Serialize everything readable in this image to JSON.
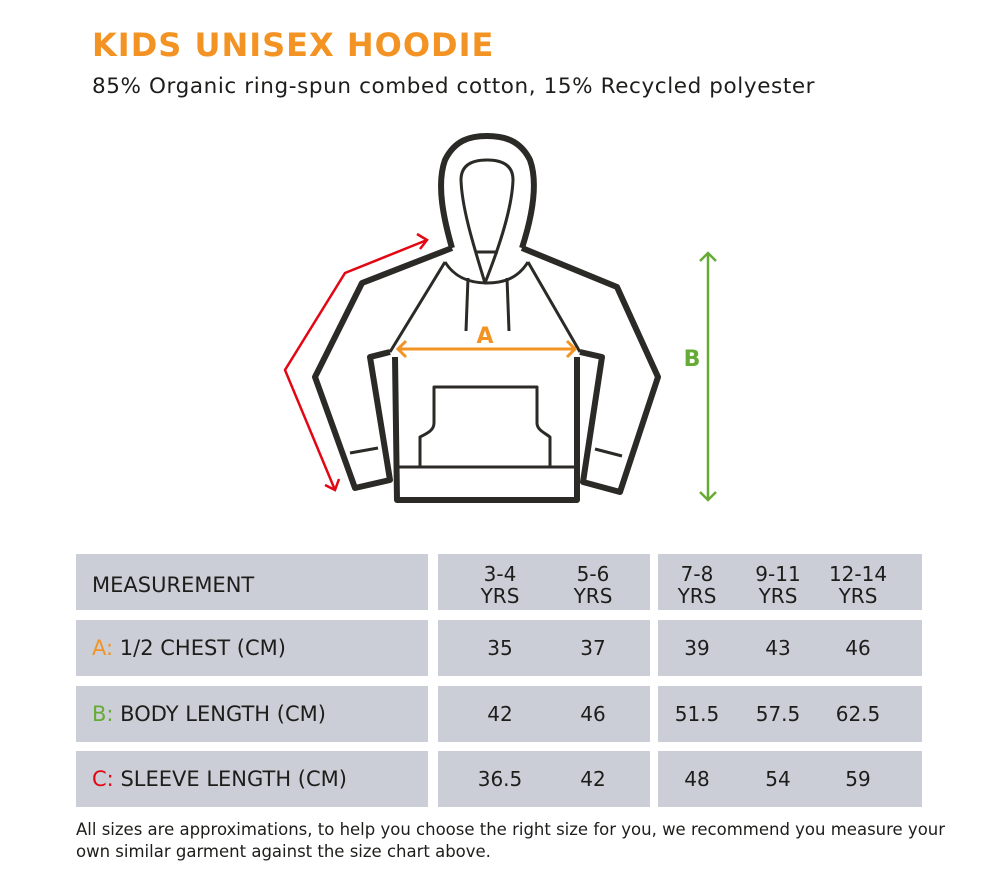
{
  "title": "KIDS UNISEX HOODIE",
  "subtitle": "85% Organic ring-spun combed cotton, 15% Recycled polyester",
  "colors": {
    "accent": "#f39324",
    "a": "#f39324",
    "b": "#66ab35",
    "c": "#e30613",
    "cell": "#cbced6"
  },
  "diagram": {
    "label_a": "A",
    "label_b": "B"
  },
  "table": {
    "header": "MEASUREMENT",
    "sizes": [
      [
        "3-4",
        "YRS"
      ],
      [
        "5-6",
        "YRS"
      ],
      [
        "7-8",
        "YRS"
      ],
      [
        "9-11",
        "YRS"
      ],
      [
        "12-14",
        "YRS"
      ]
    ],
    "rows": [
      {
        "key": "A:",
        "label": "1/2 CHEST (CM)",
        "values": [
          "35",
          "37",
          "39",
          "43",
          "46"
        ]
      },
      {
        "key": "B:",
        "label": "BODY LENGTH (CM)",
        "values": [
          "42",
          "46",
          "51.5",
          "57.5",
          "62.5"
        ]
      },
      {
        "key": "C:",
        "label": "SLEEVE LENGTH (CM)",
        "values": [
          "36.5",
          "42",
          "48",
          "54",
          "59"
        ]
      }
    ]
  },
  "note": "All sizes are approximations, to help you choose the right size for you, we recommend you measure your own similar garment against the size chart above."
}
